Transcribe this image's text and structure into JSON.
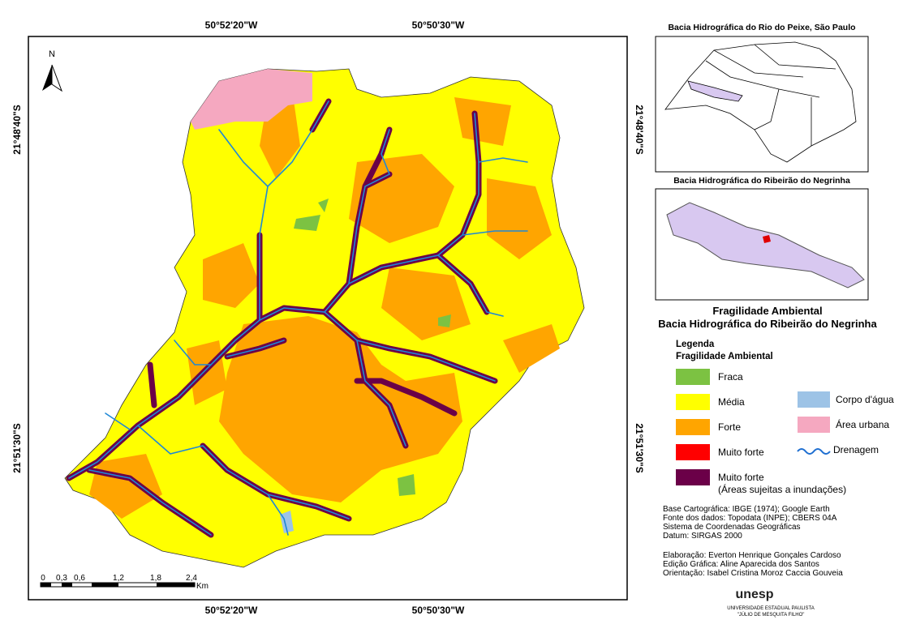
{
  "frame": {
    "top_labels": [
      "50°52'20\"W",
      "50°50'30\"W"
    ],
    "bottom_labels": [
      "50°52'20\"W",
      "50°50'30\"W"
    ],
    "left_labels": [
      "21°48'40\"S",
      "21°51'30\"S"
    ],
    "right_labels": [
      "21°48'40\"S",
      "21°51'30\"S"
    ],
    "north": "N",
    "scale_ticks": [
      "0",
      "0,3",
      "0,6",
      "1,2",
      "1,8",
      "2,4"
    ],
    "scale_unit": "Km"
  },
  "inset_state": {
    "title": "Bacia Hidrográfica do Rio do Peixe, São Paulo"
  },
  "inset_basin": {
    "title": "Bacia Hidrográfica do Ribeirão do Negrinha"
  },
  "title": [
    "Fragilidade Ambiental",
    "Bacia Hidrográfica do Ribeirão do Negrinha"
  ],
  "legend": {
    "heading": [
      "Legenda",
      "Fragilidade Ambiental"
    ],
    "items": [
      {
        "lines": [
          "Fraca"
        ],
        "color": "#7cc242"
      },
      {
        "lines": [
          "Média"
        ],
        "color": "#ffff00"
      },
      {
        "lines": [
          "Forte"
        ],
        "color": "#ffa500"
      },
      {
        "lines": [
          "Muito forte"
        ],
        "color": "#ff0000"
      },
      {
        "lines": [
          "Muito forte",
          "(Áreas sujeitas a inundações)"
        ],
        "color": "#6b0048"
      }
    ],
    "extra_items": [
      {
        "lines": [
          "Corpo d'água"
        ],
        "color": "#9dc3e6"
      },
      {
        "lines": [
          "Área urbana"
        ],
        "color": "#f5a8c0"
      },
      {
        "lines": [
          "Drenagem"
        ],
        "color": "#1f6fd1"
      }
    ]
  },
  "credits": {
    "sources": [
      "Base Cartográfica: IBGE (1974); Google Earth",
      "Fonte dos dados: Topodata (INPE); CBERS 04A",
      "Sistema de Coordenadas Geográficas",
      "Datum: SIRGAS 2000"
    ],
    "authors": [
      "Elaboração: Everton Henrique Gonçales Cardoso",
      "Edição Gráfica: Aline Aparecida dos Santos",
      "Orientação: Isabel Cristina Moroz Caccia Gouveia"
    ]
  },
  "logo": {
    "name": "unesp",
    "subtitle": [
      "UNIVERSIDADE ESTADUAL PAULISTA",
      "\"JÚLIO DE MESQUITA FILHO\""
    ]
  }
}
